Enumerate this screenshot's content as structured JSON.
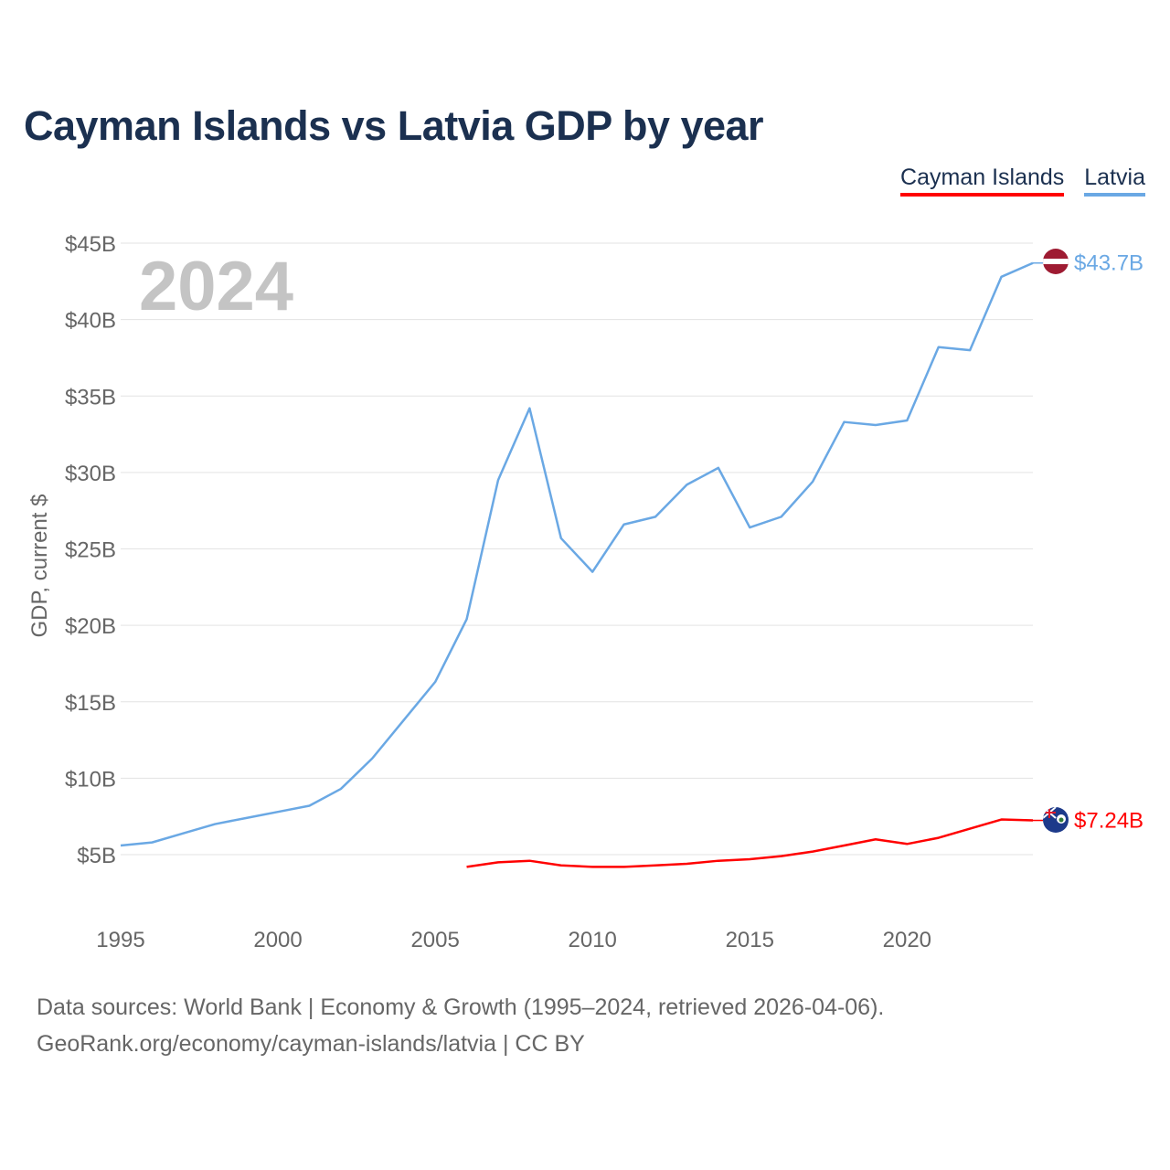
{
  "title": "Cayman Islands vs Latvia GDP by year",
  "legend": [
    {
      "label": "Cayman Islands",
      "color": "#ff0000"
    },
    {
      "label": "Latvia",
      "color": "#6aa8e4"
    }
  ],
  "source_line1": "Data sources: World Bank | Economy & Growth (1995–2024, retrieved 2026-04-06).",
  "source_line2": "GeoRank.org/economy/cayman-islands/latvia | CC BY",
  "chart_data": {
    "type": "line",
    "title": "Cayman Islands vs Latvia GDP by year",
    "ylabel": "GDP, current $",
    "xlabel": "",
    "year_label": "2024",
    "xlim": [
      1995,
      2024
    ],
    "ylim": [
      0,
      45
    ],
    "y_unit": "billion USD",
    "y_ticks": [
      5,
      10,
      15,
      20,
      25,
      30,
      35,
      40,
      45
    ],
    "y_tick_labels": [
      "$5B",
      "$10B",
      "$15B",
      "$20B",
      "$25B",
      "$30B",
      "$35B",
      "$40B",
      "$45B"
    ],
    "x_ticks": [
      1995,
      2000,
      2005,
      2010,
      2015,
      2020
    ],
    "x_tick_labels": [
      "1995",
      "2000",
      "2005",
      "2010",
      "2015",
      "2020"
    ],
    "grid": true,
    "series": [
      {
        "name": "Latvia",
        "color": "#6aa8e4",
        "end_label": "$43.7B",
        "flag": "latvia-flag",
        "x": [
          1995,
          1996,
          1997,
          1998,
          1999,
          2000,
          2001,
          2002,
          2003,
          2004,
          2005,
          2006,
          2007,
          2008,
          2009,
          2010,
          2011,
          2012,
          2013,
          2014,
          2015,
          2016,
          2017,
          2018,
          2019,
          2020,
          2021,
          2022,
          2023,
          2024
        ],
        "values": [
          5.6,
          5.8,
          6.4,
          7.0,
          7.4,
          7.8,
          8.2,
          9.3,
          11.3,
          13.8,
          16.3,
          20.4,
          29.5,
          34.2,
          25.7,
          23.5,
          26.6,
          27.1,
          29.2,
          30.3,
          26.4,
          27.1,
          29.4,
          33.3,
          33.1,
          33.4,
          38.2,
          38.0,
          42.8,
          43.7
        ]
      },
      {
        "name": "Cayman Islands",
        "color": "#ff0000",
        "end_label": "$7.24B",
        "flag": "cayman-islands-flag",
        "x": [
          2006,
          2007,
          2008,
          2009,
          2010,
          2011,
          2012,
          2013,
          2014,
          2015,
          2016,
          2017,
          2018,
          2019,
          2020,
          2021,
          2022,
          2023,
          2024
        ],
        "values": [
          4.2,
          4.5,
          4.6,
          4.3,
          4.2,
          4.2,
          4.3,
          4.4,
          4.6,
          4.7,
          4.9,
          5.2,
          5.6,
          6.0,
          5.7,
          6.1,
          6.7,
          7.3,
          7.24
        ]
      }
    ]
  }
}
